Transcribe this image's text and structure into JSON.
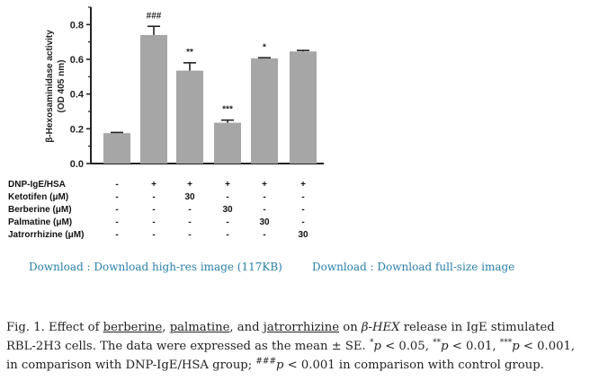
{
  "chart_data": {
    "type": "bar",
    "ylabel_lines": [
      "β-Hexosaminidase activity",
      "(OD 405 nm)"
    ],
    "ylim": [
      0,
      0.9
    ],
    "yticks": [
      "0.0",
      "0.2",
      "0.4",
      "0.6",
      "0.8"
    ],
    "ytick_values": [
      0,
      0.2,
      0.4,
      0.6,
      0.8
    ],
    "values": [
      0.175,
      0.74,
      0.535,
      0.235,
      0.605,
      0.645
    ],
    "errors": [
      0.004,
      0.05,
      0.045,
      0.015,
      0.004,
      0.006
    ],
    "significance": [
      "",
      "###",
      "**",
      "***",
      "*",
      ""
    ],
    "bar_color": "#a6a6a6",
    "grid": false,
    "treatments": [
      {
        "label": "DNP-IgE/HSA",
        "values": [
          "-",
          "+",
          "+",
          "+",
          "+",
          "+"
        ]
      },
      {
        "label": "Ketotifen (μM)",
        "values": [
          "-",
          "-",
          "30",
          "-",
          "-",
          "-"
        ]
      },
      {
        "label": "Berberine (μM)",
        "values": [
          "-",
          "-",
          "-",
          "30",
          "-",
          "-"
        ]
      },
      {
        "label": "Palmatine (μM)",
        "values": [
          "-",
          "-",
          "-",
          "-",
          "30",
          "-"
        ]
      },
      {
        "label": "Jatrorrhizine (μM)",
        "values": [
          "-",
          "-",
          "-",
          "-",
          "-",
          "30"
        ]
      }
    ]
  },
  "downloads": {
    "high_res": "Download : Download high-res image (117KB)",
    "full_size": "Download : Download full-size image"
  },
  "caption": {
    "fig_no": "Fig. 1.",
    "t1": " Effect of ",
    "berberine": "berberine",
    "t2": ", ",
    "palmatine": "palmatine",
    "t3": ", and ",
    "jatrorrhizine": "jatrorrhizine",
    "t4": " on ",
    "beta_hex": "β-HEX",
    "t5": " release in IgE stimulated RBL-2H3 cells. The data were expressed as the mean ± SE. ",
    "s1": "*",
    "p1": "p",
    "t6": " < 0.05, ",
    "s2": "**",
    "p2": "p",
    "t7": " < 0.01, ",
    "s3": "***",
    "p3": "p",
    "t8": " < 0.001, in comparison with DNP-IgE/HSA group; ",
    "s4": "###",
    "p4": "p",
    "t9": " < 0.001 in comparison with control group."
  }
}
